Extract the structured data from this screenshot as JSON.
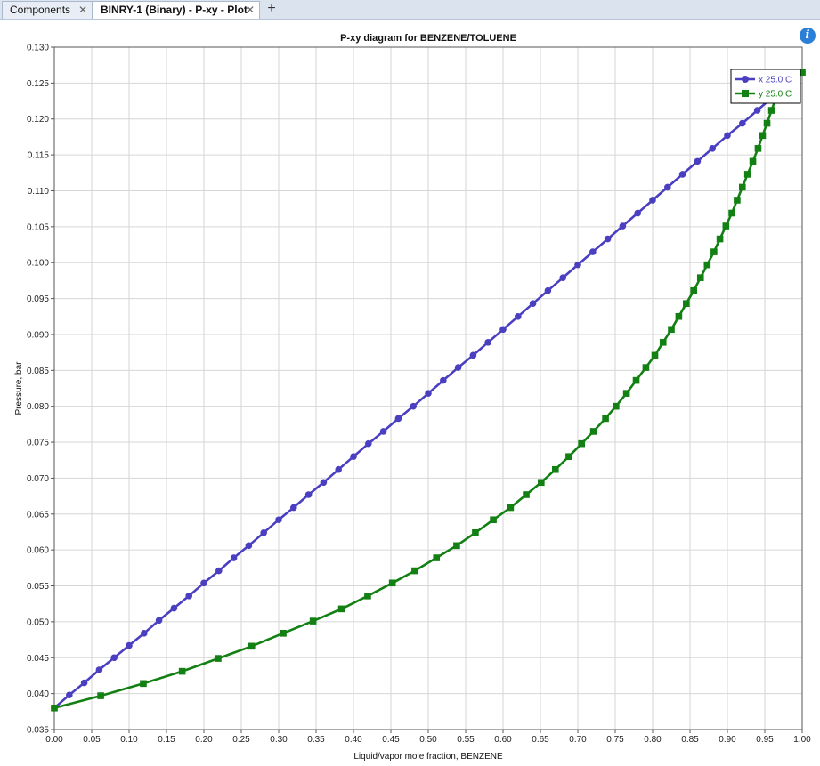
{
  "tabs": [
    {
      "label": "Components",
      "close": "✕"
    },
    {
      "label": "BINRY-1 (Binary) - P-xy - Plot",
      "close": "✕"
    }
  ],
  "add_tab": "+",
  "info_icon": "i",
  "chart_data": {
    "type": "line",
    "title": "P-xy diagram for BENZENE/TOLUENE",
    "xlabel": "Liquid/vapor mole fraction, BENZENE",
    "ylabel": "Pressure, bar",
    "xlim": [
      0,
      1
    ],
    "ylim": [
      0.035,
      0.13
    ],
    "grid": true,
    "legend_position": "top-right",
    "x_ticks": [
      "0.00",
      "0.05",
      "0.10",
      "0.15",
      "0.20",
      "0.25",
      "0.30",
      "0.35",
      "0.40",
      "0.45",
      "0.50",
      "0.55",
      "0.60",
      "0.65",
      "0.70",
      "0.75",
      "0.80",
      "0.85",
      "0.90",
      "0.95",
      "1.00"
    ],
    "y_ticks": [
      "0.035",
      "0.040",
      "0.045",
      "0.050",
      "0.055",
      "0.060",
      "0.065",
      "0.070",
      "0.075",
      "0.080",
      "0.085",
      "0.090",
      "0.095",
      "0.100",
      "0.105",
      "0.110",
      "0.115",
      "0.120",
      "0.125",
      "0.130"
    ],
    "series": [
      {
        "name": "x  25.0 C",
        "color": "#4b3fc1",
        "marker": "circle",
        "x": [
          0.0,
          0.02,
          0.04,
          0.06,
          0.08,
          0.1,
          0.12,
          0.14,
          0.16,
          0.18,
          0.2,
          0.22,
          0.24,
          0.26,
          0.28,
          0.3,
          0.32,
          0.34,
          0.36,
          0.38,
          0.4,
          0.42,
          0.44,
          0.46,
          0.48,
          0.5,
          0.52,
          0.54,
          0.56,
          0.58,
          0.6,
          0.62,
          0.64,
          0.66,
          0.68,
          0.7,
          0.72,
          0.74,
          0.76,
          0.78,
          0.8,
          0.82,
          0.84,
          0.86,
          0.88,
          0.9,
          0.92,
          0.94,
          0.96,
          0.98,
          1.0
        ],
        "y": [
          0.038,
          0.0398,
          0.0415,
          0.0433,
          0.045,
          0.0467,
          0.0484,
          0.0502,
          0.0519,
          0.0536,
          0.0554,
          0.0571,
          0.0589,
          0.0606,
          0.0624,
          0.0642,
          0.0659,
          0.0677,
          0.0694,
          0.0712,
          0.073,
          0.0748,
          0.0765,
          0.0783,
          0.08,
          0.0818,
          0.0836,
          0.0854,
          0.0871,
          0.0889,
          0.0907,
          0.0925,
          0.0943,
          0.0961,
          0.0979,
          0.0997,
          0.1015,
          0.1033,
          0.1051,
          0.1069,
          0.1087,
          0.1105,
          0.1123,
          0.1141,
          0.1159,
          0.1177,
          0.1194,
          0.1212,
          0.123,
          0.1248,
          0.1265
        ]
      },
      {
        "name": "y  25.0 C",
        "color": "#128012",
        "marker": "square",
        "x": [
          0.0,
          0.062,
          0.119,
          0.171,
          0.219,
          0.264,
          0.306,
          0.346,
          0.384,
          0.419,
          0.452,
          0.482,
          0.511,
          0.538,
          0.563,
          0.587,
          0.61,
          0.631,
          0.651,
          0.67,
          0.688,
          0.705,
          0.721,
          0.737,
          0.751,
          0.765,
          0.778,
          0.791,
          0.803,
          0.814,
          0.825,
          0.835,
          0.845,
          0.855,
          0.864,
          0.873,
          0.882,
          0.89,
          0.898,
          0.906,
          0.913,
          0.92,
          0.927,
          0.934,
          0.941,
          0.947,
          0.953,
          0.959,
          0.965,
          0.971,
          0.977,
          0.982,
          0.988,
          1.0
        ],
        "y": [
          0.038,
          0.0397,
          0.0414,
          0.0431,
          0.0449,
          0.0466,
          0.0484,
          0.0501,
          0.0518,
          0.0536,
          0.0554,
          0.0571,
          0.0589,
          0.0606,
          0.0624,
          0.0642,
          0.0659,
          0.0677,
          0.0694,
          0.0712,
          0.073,
          0.0748,
          0.0765,
          0.0783,
          0.08,
          0.0818,
          0.0836,
          0.0854,
          0.0871,
          0.0889,
          0.0907,
          0.0925,
          0.0943,
          0.0961,
          0.0979,
          0.0997,
          0.1015,
          0.1033,
          0.1051,
          0.1069,
          0.1087,
          0.1105,
          0.1123,
          0.1141,
          0.1159,
          0.1177,
          0.1194,
          0.1212,
          0.123,
          0.1248,
          0.1265,
          0.1265,
          0.1265,
          0.1265
        ]
      }
    ]
  }
}
